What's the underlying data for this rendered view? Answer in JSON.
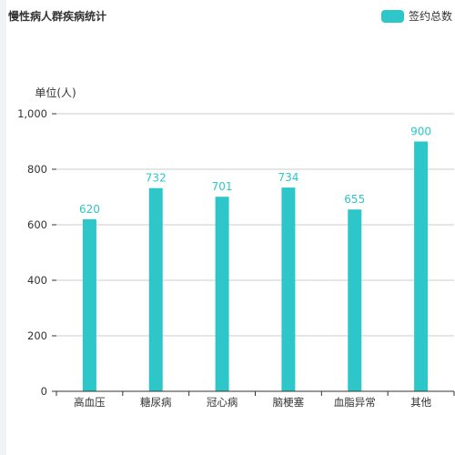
{
  "chart_data": {
    "type": "bar",
    "title": "慢性病人群疾病统计",
    "ylabel": "单位(人)",
    "xlabel": "",
    "categories": [
      "高血压",
      "糖尿病",
      "冠心病",
      "脑梗塞",
      "血脂异常",
      "其他"
    ],
    "series": [
      {
        "name": "签约总数",
        "values": [
          620,
          732,
          701,
          734,
          655,
          900
        ]
      }
    ],
    "ylim": [
      0,
      1000
    ],
    "yticks": [
      0,
      200,
      400,
      600,
      800,
      1000
    ],
    "ytick_labels": [
      "0",
      "200",
      "400",
      "600",
      "800",
      "1,000"
    ],
    "grid": true,
    "legend_position": "top-right",
    "data_labels": true
  },
  "colors": {
    "bar": "#2ec7c9",
    "label": "#2ec7c9",
    "grid": "#cccccc",
    "axis": "#333333",
    "text": "#333333"
  }
}
